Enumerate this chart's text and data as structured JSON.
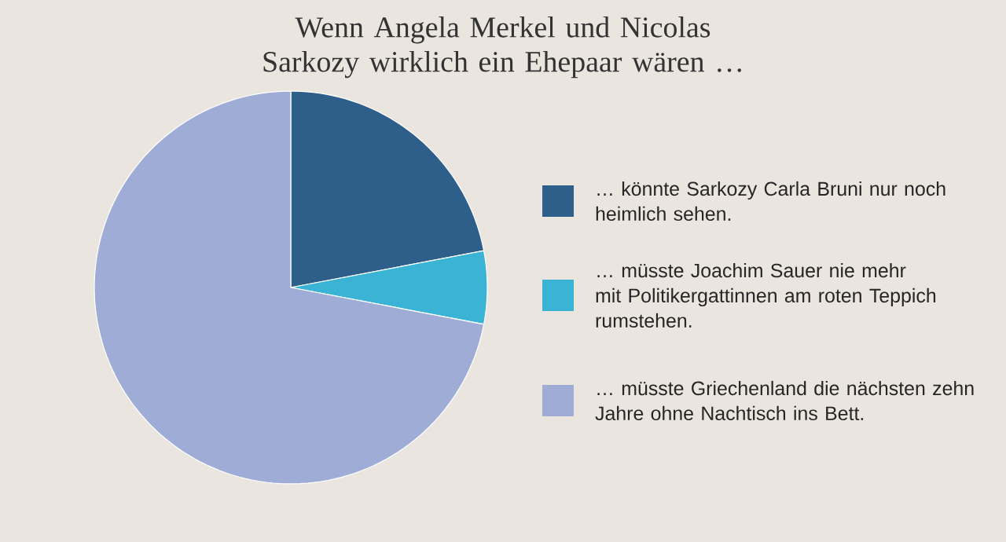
{
  "chart_data": {
    "type": "pie",
    "title": "Wenn Angela Merkel und Nicolas Sarkozy wirklich ein Ehepaar wären …",
    "categories": [
      "… könnte Sarkozy Carla Bruni nur noch heimlich sehen.",
      "… müsste Joachim Sauer nie mehr mit Politikergattinnen am roten Teppich rumstehen.",
      "… müsste Griechenland die nächsten zehn Jahre ohne Nachtisch ins Bett."
    ],
    "values": [
      22,
      6,
      72
    ],
    "colors": [
      "#2e5f8a",
      "#3ab3d4",
      "#9fadd6"
    ],
    "legend": "right"
  }
}
